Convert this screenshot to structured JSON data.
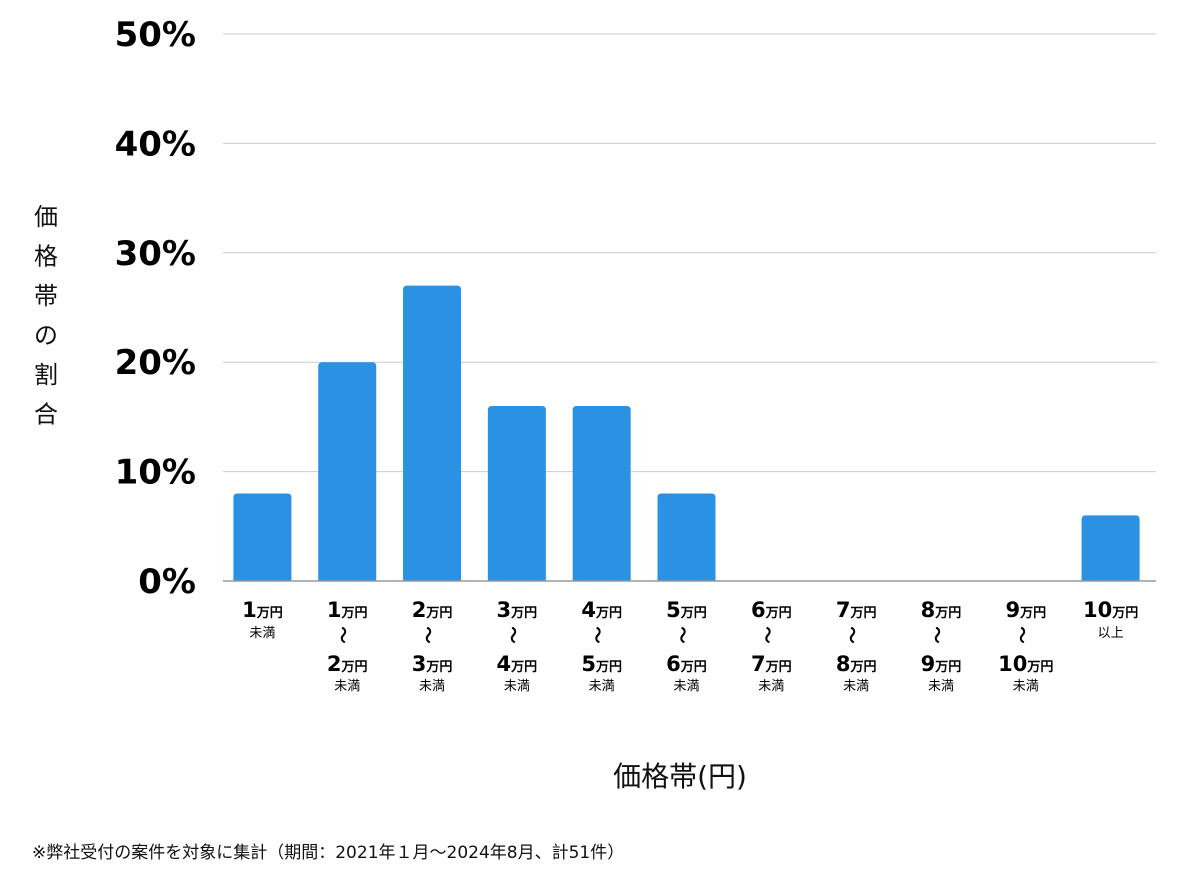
{
  "chart_data": {
    "type": "bar",
    "ylabel": "価格帯の割合",
    "xlabel": "価格帯(円)",
    "ylim": [
      0,
      50
    ],
    "yticks": [
      "0%",
      "10%",
      "20%",
      "30%",
      "40%",
      "50%"
    ],
    "ytick_values": [
      0,
      10,
      20,
      30,
      40,
      50
    ],
    "grid": true,
    "bar_color": "#2b91e3",
    "categories": [
      {
        "from": "1",
        "from_unit": "万円",
        "to": "",
        "to_unit": "",
        "note": "未満"
      },
      {
        "from": "1",
        "from_unit": "万円",
        "to": "2",
        "to_unit": "万円",
        "note": "未満"
      },
      {
        "from": "2",
        "from_unit": "万円",
        "to": "3",
        "to_unit": "万円",
        "note": "未満"
      },
      {
        "from": "3",
        "from_unit": "万円",
        "to": "4",
        "to_unit": "万円",
        "note": "未満"
      },
      {
        "from": "4",
        "from_unit": "万円",
        "to": "5",
        "to_unit": "万円",
        "note": "未満"
      },
      {
        "from": "5",
        "from_unit": "万円",
        "to": "6",
        "to_unit": "万円",
        "note": "未満"
      },
      {
        "from": "6",
        "from_unit": "万円",
        "to": "7",
        "to_unit": "万円",
        "note": "未満"
      },
      {
        "from": "7",
        "from_unit": "万円",
        "to": "8",
        "to_unit": "万円",
        "note": "未満"
      },
      {
        "from": "8",
        "from_unit": "万円",
        "to": "9",
        "to_unit": "万円",
        "note": "未満"
      },
      {
        "from": "9",
        "from_unit": "万円",
        "to": "10",
        "to_unit": "万円",
        "note": "未満"
      },
      {
        "from": "10",
        "from_unit": "万円",
        "to": "",
        "to_unit": "",
        "note": "以上"
      }
    ],
    "tilde": "〜",
    "values": [
      8,
      20,
      27,
      16,
      16,
      8,
      0,
      0,
      0,
      0,
      6
    ]
  },
  "footnote": "※弊社受付の案件を対象に集計（期間：2021年１月〜2024年8月、計51件）"
}
